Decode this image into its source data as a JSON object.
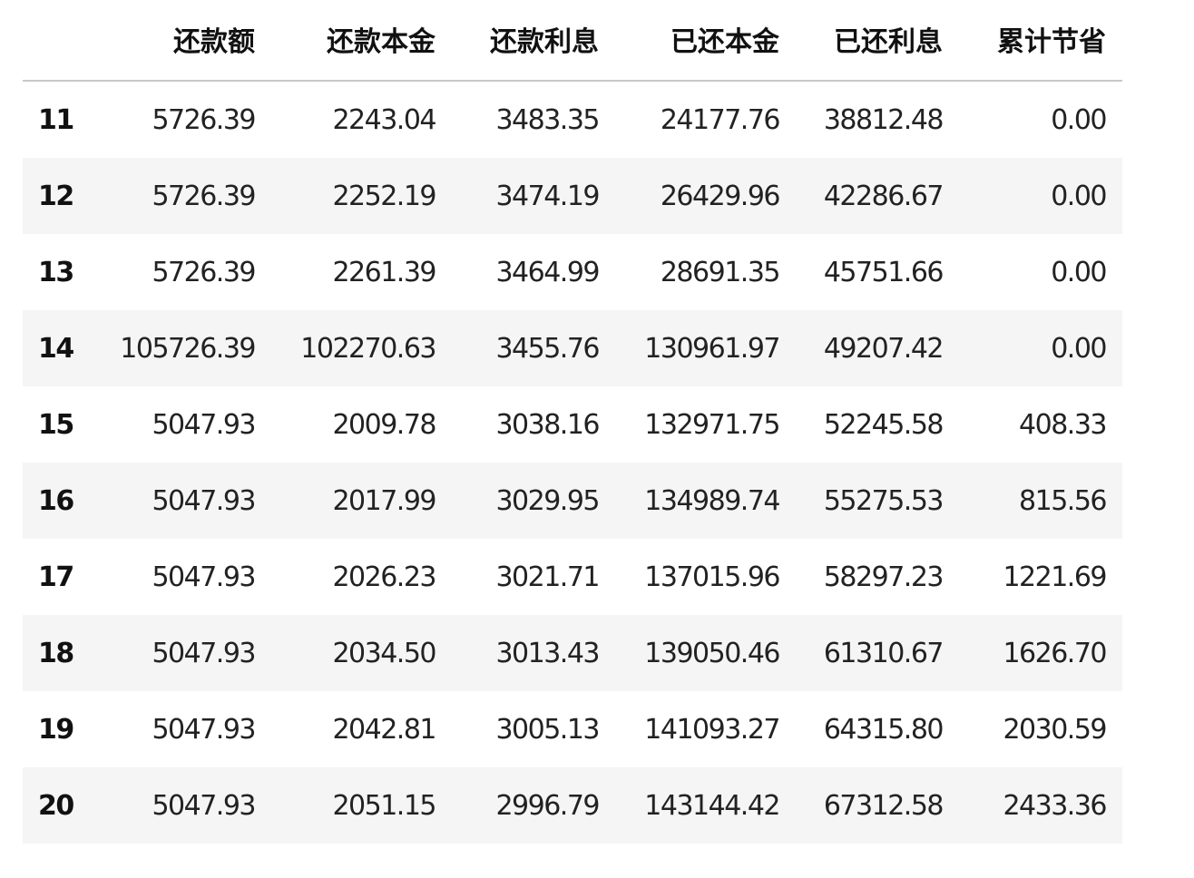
{
  "table": {
    "columns": [
      "",
      "还款额",
      "还款本金",
      "还款利息",
      "已还本金",
      "已还利息",
      "累计节省"
    ],
    "rows": [
      {
        "index": "11",
        "values": [
          "5726.39",
          "2243.04",
          "3483.35",
          "24177.76",
          "38812.48",
          "0.00"
        ]
      },
      {
        "index": "12",
        "values": [
          "5726.39",
          "2252.19",
          "3474.19",
          "26429.96",
          "42286.67",
          "0.00"
        ]
      },
      {
        "index": "13",
        "values": [
          "5726.39",
          "2261.39",
          "3464.99",
          "28691.35",
          "45751.66",
          "0.00"
        ]
      },
      {
        "index": "14",
        "values": [
          "105726.39",
          "102270.63",
          "3455.76",
          "130961.97",
          "49207.42",
          "0.00"
        ]
      },
      {
        "index": "15",
        "values": [
          "5047.93",
          "2009.78",
          "3038.16",
          "132971.75",
          "52245.58",
          "408.33"
        ]
      },
      {
        "index": "16",
        "values": [
          "5047.93",
          "2017.99",
          "3029.95",
          "134989.74",
          "55275.53",
          "815.56"
        ]
      },
      {
        "index": "17",
        "values": [
          "5047.93",
          "2026.23",
          "3021.71",
          "137015.96",
          "58297.23",
          "1221.69"
        ]
      },
      {
        "index": "18",
        "values": [
          "5047.93",
          "2034.50",
          "3013.43",
          "139050.46",
          "61310.67",
          "1626.70"
        ]
      },
      {
        "index": "19",
        "values": [
          "5047.93",
          "2042.81",
          "3005.13",
          "141093.27",
          "64315.80",
          "2030.59"
        ]
      },
      {
        "index": "20",
        "values": [
          "5047.93",
          "2051.15",
          "2996.79",
          "143144.42",
          "67312.58",
          "2433.36"
        ]
      }
    ],
    "stripe_color": "#f5f5f5"
  }
}
